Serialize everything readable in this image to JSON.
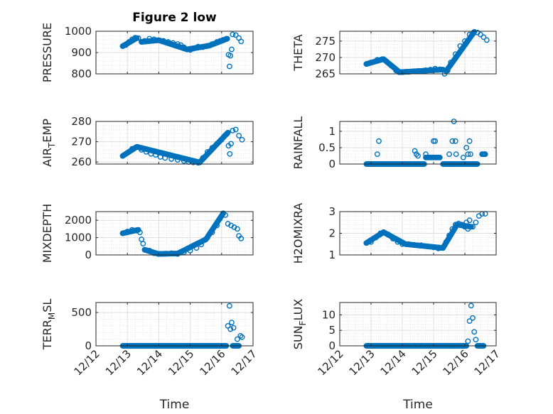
{
  "figure_title": "Figure 2 low",
  "x_axis_label": "Time",
  "chart_data": [
    {
      "type": "scatter",
      "id": "pressure",
      "title": "Figure 2 low",
      "ylabel": "PRESSURE",
      "ylim": [
        800,
        1000
      ],
      "yticks": [
        800,
        900,
        1000
      ],
      "ytick_labels": [
        "800",
        "900",
        "1000"
      ],
      "xlabel": "",
      "xlim": [
        12.0,
        17.0
      ],
      "xticks": [
        12,
        13,
        14,
        15,
        16,
        17
      ],
      "show_xtick_labels": false,
      "grid": true,
      "marker": "o",
      "color": "#0072BD",
      "points": [
        [
          12.85,
          930
        ],
        [
          12.95,
          935
        ],
        [
          13.05,
          950
        ],
        [
          13.15,
          962
        ],
        [
          13.25,
          970
        ],
        [
          13.35,
          968
        ],
        [
          13.45,
          950
        ],
        [
          13.55,
          955
        ],
        [
          13.7,
          965
        ],
        [
          13.85,
          962
        ],
        [
          14.0,
          958
        ],
        [
          14.15,
          955
        ],
        [
          14.3,
          950
        ],
        [
          14.45,
          945
        ],
        [
          14.6,
          940
        ],
        [
          14.7,
          935
        ],
        [
          14.8,
          925
        ],
        [
          14.9,
          915
        ],
        [
          15.0,
          912
        ],
        [
          15.1,
          918
        ],
        [
          15.25,
          928
        ],
        [
          15.4,
          925
        ],
        [
          15.55,
          932
        ],
        [
          15.7,
          940
        ],
        [
          15.85,
          950
        ],
        [
          15.95,
          955
        ],
        [
          16.05,
          960
        ],
        [
          16.15,
          965
        ],
        [
          16.22,
          890
        ],
        [
          16.25,
          835
        ],
        [
          16.28,
          885
        ],
        [
          16.32,
          915
        ],
        [
          16.35,
          985
        ],
        [
          16.45,
          982
        ],
        [
          16.55,
          968
        ],
        [
          16.62,
          952
        ]
      ],
      "series": [
        {
          "x_start": 12.85,
          "x_end": 13.3,
          "y_start": 930,
          "y_end": 968
        },
        {
          "x_start": 13.45,
          "x_end": 14.0,
          "y_start": 950,
          "y_end": 958
        },
        {
          "x_start": 14.0,
          "x_end": 14.9,
          "y_start": 958,
          "y_end": 915
        },
        {
          "x_start": 14.9,
          "x_end": 15.6,
          "y_start": 915,
          "y_end": 932
        },
        {
          "x_start": 15.6,
          "x_end": 16.18,
          "y_start": 932,
          "y_end": 965
        }
      ]
    },
    {
      "type": "scatter",
      "id": "theta",
      "title": "",
      "ylabel": "THETA",
      "ylim": [
        265,
        278
      ],
      "yticks": [
        265,
        270,
        275
      ],
      "ytick_labels": [
        "265",
        "270",
        "275"
      ],
      "xlabel": "",
      "xlim": [
        12.0,
        17.0
      ],
      "xticks": [
        12,
        13,
        14,
        15,
        16,
        17
      ],
      "show_xtick_labels": false,
      "grid": true,
      "marker": "o",
      "color": "#0072BD",
      "points": [
        [
          12.85,
          268
        ],
        [
          13.0,
          268.5
        ],
        [
          13.2,
          269.3
        ],
        [
          13.35,
          269.5
        ],
        [
          13.5,
          268.8
        ],
        [
          13.65,
          267.5
        ],
        [
          13.8,
          266
        ],
        [
          13.9,
          265.6
        ],
        [
          14.0,
          265.5
        ],
        [
          14.2,
          265.6
        ],
        [
          14.4,
          265.8
        ],
        [
          14.6,
          265.9
        ],
        [
          14.75,
          266.1
        ],
        [
          14.9,
          266.3
        ],
        [
          15.05,
          266.6
        ],
        [
          15.2,
          266.4
        ],
        [
          15.3,
          266.2
        ],
        [
          15.35,
          265
        ],
        [
          15.45,
          266
        ],
        [
          15.55,
          268.5
        ],
        [
          15.7,
          271
        ],
        [
          15.85,
          273.5
        ],
        [
          16.0,
          275
        ],
        [
          16.15,
          277
        ],
        [
          16.3,
          277.8
        ],
        [
          16.4,
          277.6
        ],
        [
          16.5,
          277
        ],
        [
          16.6,
          276.2
        ],
        [
          16.7,
          275.3
        ]
      ],
      "series": [
        {
          "x_start": 12.85,
          "x_end": 13.4,
          "y_start": 268,
          "y_end": 269.5
        },
        {
          "x_start": 13.4,
          "x_end": 13.9,
          "y_start": 269.5,
          "y_end": 265.6
        },
        {
          "x_start": 13.9,
          "x_end": 15.3,
          "y_start": 265.5,
          "y_end": 266.3
        },
        {
          "x_start": 15.4,
          "x_end": 16.3,
          "y_start": 265.8,
          "y_end": 277.8
        }
      ]
    },
    {
      "type": "scatter",
      "id": "air_temp",
      "title": "",
      "ylabel": "AIR_TEMP",
      "ylabel_display": {
        "base": "AIR",
        "sub": "T",
        "rest": "EMP"
      },
      "ylim": [
        259,
        280
      ],
      "yticks": [
        260,
        270,
        280
      ],
      "ytick_labels": [
        "260",
        "270",
        "280"
      ],
      "xlabel": "",
      "xlim": [
        12.0,
        17.0
      ],
      "xticks": [
        12,
        13,
        14,
        15,
        16,
        17
      ],
      "show_xtick_labels": false,
      "grid": true,
      "marker": "o",
      "color": "#0072BD",
      "points": [
        [
          12.85,
          263
        ],
        [
          13.0,
          264.5
        ],
        [
          13.15,
          266.5
        ],
        [
          13.3,
          267.5
        ],
        [
          13.45,
          266
        ],
        [
          13.6,
          265
        ],
        [
          13.75,
          264
        ],
        [
          13.9,
          263.5
        ],
        [
          14.05,
          262.5
        ],
        [
          14.2,
          262
        ],
        [
          14.4,
          261.5
        ],
        [
          14.6,
          261
        ],
        [
          14.8,
          260.5
        ],
        [
          14.95,
          260
        ],
        [
          15.1,
          259.8
        ],
        [
          15.25,
          259.6
        ],
        [
          15.4,
          262
        ],
        [
          15.55,
          265
        ],
        [
          15.7,
          267
        ],
        [
          15.85,
          269
        ],
        [
          16.0,
          271
        ],
        [
          16.1,
          273
        ],
        [
          16.18,
          274
        ],
        [
          16.22,
          268
        ],
        [
          16.26,
          264
        ],
        [
          16.3,
          269
        ],
        [
          16.35,
          275.5
        ],
        [
          16.45,
          276
        ],
        [
          16.55,
          273
        ],
        [
          16.65,
          271
        ]
      ],
      "series": [
        {
          "x_start": 12.85,
          "x_end": 13.3,
          "y_start": 263,
          "y_end": 267.5
        },
        {
          "x_start": 13.3,
          "x_end": 15.3,
          "y_start": 267.5,
          "y_end": 259.8
        },
        {
          "x_start": 15.3,
          "x_end": 16.2,
          "y_start": 259.8,
          "y_end": 274.5
        }
      ]
    },
    {
      "type": "scatter",
      "id": "rainfall",
      "title": "",
      "ylabel": "RAINFALL",
      "ylim": [
        0,
        1.3
      ],
      "yticks": [
        0,
        0.5,
        1
      ],
      "ytick_labels": [
        "0",
        "0.5",
        "1"
      ],
      "xlabel": "",
      "xlim": [
        12.0,
        17.0
      ],
      "xticks": [
        12,
        13,
        14,
        15,
        16,
        17
      ],
      "show_xtick_labels": false,
      "grid": true,
      "marker": "o",
      "color": "#0072BD",
      "points": [
        [
          13.2,
          0.3
        ],
        [
          13.25,
          0.7
        ],
        [
          14.4,
          0.4
        ],
        [
          14.45,
          0.3
        ],
        [
          14.5,
          0.25
        ],
        [
          14.75,
          0.3
        ],
        [
          14.8,
          0.2
        ],
        [
          14.9,
          0.2
        ],
        [
          15.0,
          0.7
        ],
        [
          15.05,
          0.7
        ],
        [
          15.5,
          0.3
        ],
        [
          15.6,
          0.7
        ],
        [
          15.65,
          1.3
        ],
        [
          15.7,
          0.7
        ],
        [
          15.72,
          0.3
        ],
        [
          15.95,
          0.2
        ],
        [
          16.05,
          0.5
        ],
        [
          16.1,
          0.3
        ],
        [
          16.15,
          0.7
        ],
        [
          16.18,
          0.3
        ],
        [
          16.55,
          0.3
        ],
        [
          16.65,
          0.3
        ]
      ],
      "series": [
        {
          "x_start": 12.85,
          "x_end": 14.7,
          "y_start": 0,
          "y_end": 0
        },
        {
          "x_start": 14.75,
          "x_end": 15.2,
          "y_start": 0.2,
          "y_end": 0.2
        },
        {
          "x_start": 15.3,
          "x_end": 16.4,
          "y_start": 0,
          "y_end": 0
        },
        {
          "x_start": 16.55,
          "x_end": 16.65,
          "y_start": 0.3,
          "y_end": 0.3
        }
      ]
    },
    {
      "type": "scatter",
      "id": "mixdepth",
      "title": "",
      "ylabel": "MIXDEPTH",
      "ylim": [
        0,
        2500
      ],
      "yticks": [
        0,
        1000,
        2000
      ],
      "ytick_labels": [
        "0",
        "1000",
        "2000"
      ],
      "xlabel": "",
      "xlim": [
        12.0,
        17.0
      ],
      "xticks": [
        12,
        13,
        14,
        15,
        16,
        17
      ],
      "show_xtick_labels": false,
      "grid": true,
      "marker": "o",
      "color": "#0072BD",
      "points": [
        [
          12.85,
          1250
        ],
        [
          13.0,
          1350
        ],
        [
          13.15,
          1450
        ],
        [
          13.3,
          1400
        ],
        [
          13.4,
          1300
        ],
        [
          13.45,
          900
        ],
        [
          13.5,
          650
        ],
        [
          13.55,
          300
        ],
        [
          13.7,
          250
        ],
        [
          13.85,
          100
        ],
        [
          14.0,
          50
        ],
        [
          14.2,
          80
        ],
        [
          14.4,
          100
        ],
        [
          14.6,
          50
        ],
        [
          14.8,
          150
        ],
        [
          15.0,
          250
        ],
        [
          15.2,
          400
        ],
        [
          15.35,
          600
        ],
        [
          15.45,
          850
        ],
        [
          15.55,
          1000
        ],
        [
          15.7,
          1300
        ],
        [
          15.85,
          1700
        ],
        [
          15.95,
          2100
        ],
        [
          16.05,
          2400
        ],
        [
          16.12,
          2300
        ],
        [
          16.2,
          1800
        ],
        [
          16.3,
          1700
        ],
        [
          16.4,
          1600
        ],
        [
          16.5,
          1500
        ],
        [
          16.55,
          1100
        ],
        [
          16.62,
          950
        ]
      ],
      "series": [
        {
          "x_start": 12.85,
          "x_end": 13.35,
          "y_start": 1250,
          "y_end": 1450
        },
        {
          "x_start": 13.55,
          "x_end": 14.0,
          "y_start": 300,
          "y_end": 50
        },
        {
          "x_start": 14.0,
          "x_end": 14.6,
          "y_start": 60,
          "y_end": 80
        },
        {
          "x_start": 14.6,
          "x_end": 15.5,
          "y_start": 80,
          "y_end": 900
        },
        {
          "x_start": 15.5,
          "x_end": 16.05,
          "y_start": 900,
          "y_end": 2400
        }
      ]
    },
    {
      "type": "scatter",
      "id": "h2omixra",
      "title": "",
      "ylabel": "H2OMIXRA",
      "ylim": [
        1,
        3
      ],
      "yticks": [
        1,
        2,
        3
      ],
      "ytick_labels": [
        "1",
        "2",
        "3"
      ],
      "xlabel": "",
      "xlim": [
        12.0,
        17.0
      ],
      "xticks": [
        12,
        13,
        14,
        15,
        16,
        17
      ],
      "show_xtick_labels": false,
      "grid": true,
      "marker": "o",
      "color": "#0072BD",
      "points": [
        [
          12.85,
          1.55
        ],
        [
          13.0,
          1.6
        ],
        [
          13.15,
          1.8
        ],
        [
          13.3,
          2.0
        ],
        [
          13.4,
          2.05
        ],
        [
          13.55,
          1.95
        ],
        [
          13.7,
          1.75
        ],
        [
          13.85,
          1.6
        ],
        [
          14.0,
          1.5
        ],
        [
          14.2,
          1.5
        ],
        [
          14.4,
          1.45
        ],
        [
          14.6,
          1.45
        ],
        [
          14.8,
          1.4
        ],
        [
          15.0,
          1.35
        ],
        [
          15.15,
          1.3
        ],
        [
          15.3,
          1.35
        ],
        [
          15.4,
          1.6
        ],
        [
          15.5,
          1.9
        ],
        [
          15.6,
          2.2
        ],
        [
          15.7,
          2.4
        ],
        [
          15.8,
          2.45
        ],
        [
          15.9,
          2.4
        ],
        [
          16.0,
          2.3
        ],
        [
          16.05,
          2.5
        ],
        [
          16.1,
          2.2
        ],
        [
          16.15,
          2.6
        ],
        [
          16.25,
          2.3
        ],
        [
          16.35,
          2.5
        ],
        [
          16.45,
          2.8
        ],
        [
          16.55,
          2.9
        ],
        [
          16.65,
          2.9
        ]
      ],
      "series": [
        {
          "x_start": 12.85,
          "x_end": 13.4,
          "y_start": 1.55,
          "y_end": 2.05
        },
        {
          "x_start": 13.4,
          "x_end": 14.1,
          "y_start": 2.05,
          "y_end": 1.5
        },
        {
          "x_start": 14.1,
          "x_end": 15.3,
          "y_start": 1.5,
          "y_end": 1.32
        },
        {
          "x_start": 15.3,
          "x_end": 15.75,
          "y_start": 1.32,
          "y_end": 2.4
        },
        {
          "x_start": 15.75,
          "x_end": 16.2,
          "y_start": 2.4,
          "y_end": 2.3
        }
      ]
    },
    {
      "type": "scatter",
      "id": "terr_msl",
      "title": "",
      "ylabel": "TERR_MSL",
      "ylabel_display": {
        "base": "TERR",
        "sub": "M",
        "rest": "SL"
      },
      "ylim": [
        0,
        650
      ],
      "yticks": [
        0,
        500
      ],
      "ytick_labels": [
        "0",
        "500"
      ],
      "xlabel": "Time",
      "xlim": [
        12.0,
        17.0
      ],
      "xticks": [
        12,
        13,
        14,
        15,
        16,
        17
      ],
      "show_xtick_labels": true,
      "xtick_labels": [
        "12/12",
        "12/13",
        "12/14",
        "12/15",
        "12/16",
        "12/17"
      ],
      "grid": true,
      "marker": "o",
      "color": "#0072BD",
      "points": [
        [
          16.2,
          300
        ],
        [
          16.25,
          600
        ],
        [
          16.28,
          250
        ],
        [
          16.32,
          350
        ],
        [
          16.38,
          270
        ],
        [
          16.5,
          100
        ],
        [
          16.6,
          150
        ],
        [
          16.65,
          130
        ]
      ],
      "series": [
        {
          "x_start": 12.85,
          "x_end": 16.15,
          "y_start": 0,
          "y_end": 0
        },
        {
          "x_start": 16.35,
          "x_end": 16.55,
          "y_start": 0,
          "y_end": 0
        }
      ]
    },
    {
      "type": "scatter",
      "id": "sun_flux",
      "title": "",
      "ylabel": "SUN_FLUX",
      "ylabel_display": {
        "base": "SUN",
        "sub": "F",
        "rest": "LUX"
      },
      "ylim": [
        0,
        14
      ],
      "yticks": [
        0,
        5,
        10
      ],
      "ytick_labels": [
        "0",
        "5",
        "10"
      ],
      "xlabel": "Time",
      "xlim": [
        12.0,
        17.0
      ],
      "xticks": [
        12,
        13,
        14,
        15,
        16,
        17
      ],
      "show_xtick_labels": true,
      "xtick_labels": [
        "12/12",
        "12/13",
        "12/14",
        "12/15",
        "12/16",
        "12/17"
      ],
      "grid": true,
      "marker": "o",
      "color": "#0072BD",
      "points": [
        [
          16.1,
          1.5
        ],
        [
          16.15,
          8
        ],
        [
          16.2,
          13
        ],
        [
          16.25,
          9
        ],
        [
          16.3,
          4.5
        ],
        [
          16.35,
          2
        ]
      ],
      "series": [
        {
          "x_start": 12.85,
          "x_end": 16.05,
          "y_start": 0,
          "y_end": 0
        },
        {
          "x_start": 16.4,
          "x_end": 16.6,
          "y_start": 0,
          "y_end": 0
        }
      ]
    }
  ]
}
